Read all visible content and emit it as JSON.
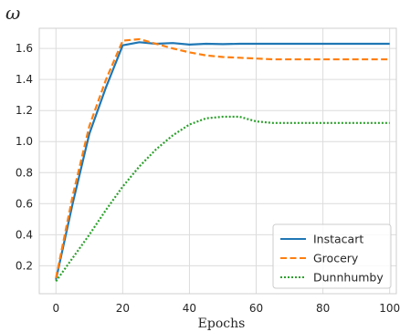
{
  "chart_data": {
    "type": "line",
    "ylabel": "ω",
    "xlabel": "Epochs",
    "xlim": [
      -5,
      102
    ],
    "ylim": [
      0.02,
      1.73
    ],
    "xticks": [
      0,
      20,
      40,
      60,
      80,
      100
    ],
    "yticks": [
      0.2,
      0.4,
      0.6,
      0.8,
      1.0,
      1.2,
      1.4,
      1.6
    ],
    "grid": true,
    "legend_position": "lower-right",
    "series": [
      {
        "name": "Instacart",
        "color": "#1f77b4",
        "dash": "solid",
        "x": [
          0,
          5,
          10,
          15,
          20,
          25,
          30,
          35,
          40,
          45,
          50,
          55,
          60,
          65,
          70,
          75,
          80,
          85,
          90,
          95,
          100
        ],
        "y": [
          0.11,
          0.6,
          1.05,
          1.35,
          1.62,
          1.64,
          1.63,
          1.635,
          1.625,
          1.63,
          1.628,
          1.63,
          1.63,
          1.63,
          1.63,
          1.63,
          1.63,
          1.63,
          1.63,
          1.63,
          1.63
        ]
      },
      {
        "name": "Grocery",
        "color": "#ff7f0e",
        "dash": "dashed",
        "x": [
          0,
          5,
          10,
          15,
          20,
          25,
          30,
          35,
          40,
          45,
          50,
          55,
          60,
          65,
          70,
          75,
          80,
          85,
          90,
          95,
          100
        ],
        "y": [
          0.12,
          0.65,
          1.1,
          1.4,
          1.65,
          1.66,
          1.63,
          1.6,
          1.575,
          1.555,
          1.545,
          1.54,
          1.535,
          1.53,
          1.53,
          1.53,
          1.53,
          1.53,
          1.53,
          1.53,
          1.53
        ]
      },
      {
        "name": "Dunnhumby",
        "color": "#2ca02c",
        "dash": "dotted",
        "x": [
          0,
          5,
          10,
          15,
          20,
          25,
          30,
          35,
          40,
          45,
          50,
          55,
          60,
          65,
          70,
          75,
          80,
          85,
          90,
          95,
          100
        ],
        "y": [
          0.1,
          0.25,
          0.4,
          0.56,
          0.71,
          0.84,
          0.95,
          1.04,
          1.11,
          1.15,
          1.16,
          1.16,
          1.13,
          1.12,
          1.12,
          1.12,
          1.12,
          1.12,
          1.12,
          1.12,
          1.12
        ]
      }
    ]
  }
}
